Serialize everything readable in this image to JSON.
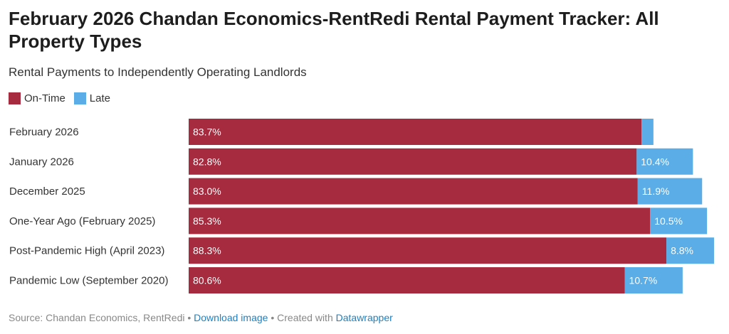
{
  "title": "February 2026 Chandan Economics-RentRedi Rental Payment Tracker: All Property Types",
  "subtitle": "Rental Payments to Independently Operating Landlords",
  "footer": {
    "source": "Source: Chandan Economics, RentRedi",
    "sep1": " • ",
    "download": "Download image",
    "sep2": " • Created with ",
    "datawrapper": "Datawrapper"
  },
  "chart_data": {
    "type": "bar",
    "orientation": "horizontal",
    "stacked": true,
    "categories": [
      "February 2026",
      "January 2026",
      "December 2025",
      "One-Year Ago (February 2025)",
      "Post-Pandemic High (April 2023)",
      "Pandemic Low (September 2020)"
    ],
    "series": [
      {
        "name": "On-Time",
        "color": "#a62b3f",
        "values": [
          83.7,
          82.8,
          83.0,
          85.3,
          88.3,
          80.6
        ],
        "labels": [
          "83.7%",
          "82.8%",
          "83.0%",
          "85.3%",
          "88.3%",
          "80.6%"
        ]
      },
      {
        "name": "Late",
        "color": "#5aade6",
        "values": [
          2.2,
          10.4,
          11.9,
          10.5,
          8.8,
          10.7
        ],
        "labels": [
          "",
          "10.4%",
          "11.9%",
          "10.5%",
          "8.8%",
          "10.7%"
        ]
      }
    ],
    "legend": "top-left",
    "grid": false
  }
}
